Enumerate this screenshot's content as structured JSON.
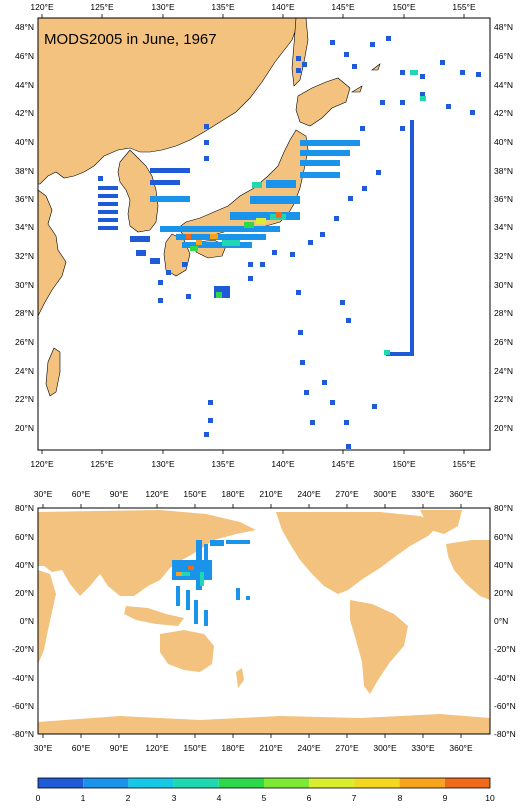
{
  "title": "MODS2005 in June, 1967",
  "colors": {
    "land": "#f2c27e",
    "ocean": "#ffffff",
    "frame": "#000000"
  },
  "regional_map": {
    "lon_labels": [
      "120°E",
      "125°E",
      "130°E",
      "135°E",
      "140°E",
      "145°E",
      "150°E",
      "155°E"
    ],
    "lat_labels": [
      "48°N",
      "46°N",
      "44°N",
      "42°N",
      "40°N",
      "38°N",
      "36°N",
      "34°N",
      "32°N",
      "30°N",
      "28°N",
      "26°N",
      "24°N",
      "22°N",
      "20°N"
    ]
  },
  "global_map": {
    "lon_labels": [
      "30°E",
      "60°E",
      "90°E",
      "120°E",
      "150°E",
      "180°E",
      "210°E",
      "240°E",
      "270°E",
      "300°E",
      "330°E",
      "360°E"
    ],
    "lat_labels": [
      "80°N",
      "60°N",
      "40°N",
      "20°N",
      "0°N",
      "-20°N",
      "-40°N",
      "-60°N",
      "-80°N"
    ]
  },
  "colorbar": {
    "labels": [
      "0",
      "1",
      "2",
      "3",
      "4",
      "5",
      "6",
      "7",
      "8",
      "9",
      "10"
    ],
    "colors": [
      "#1f5bd6",
      "#1a93ea",
      "#16c8e6",
      "#20d8b0",
      "#2dd84a",
      "#7ee836",
      "#d8ee2e",
      "#f4d820",
      "#f6a41e",
      "#f06a1c"
    ]
  }
}
